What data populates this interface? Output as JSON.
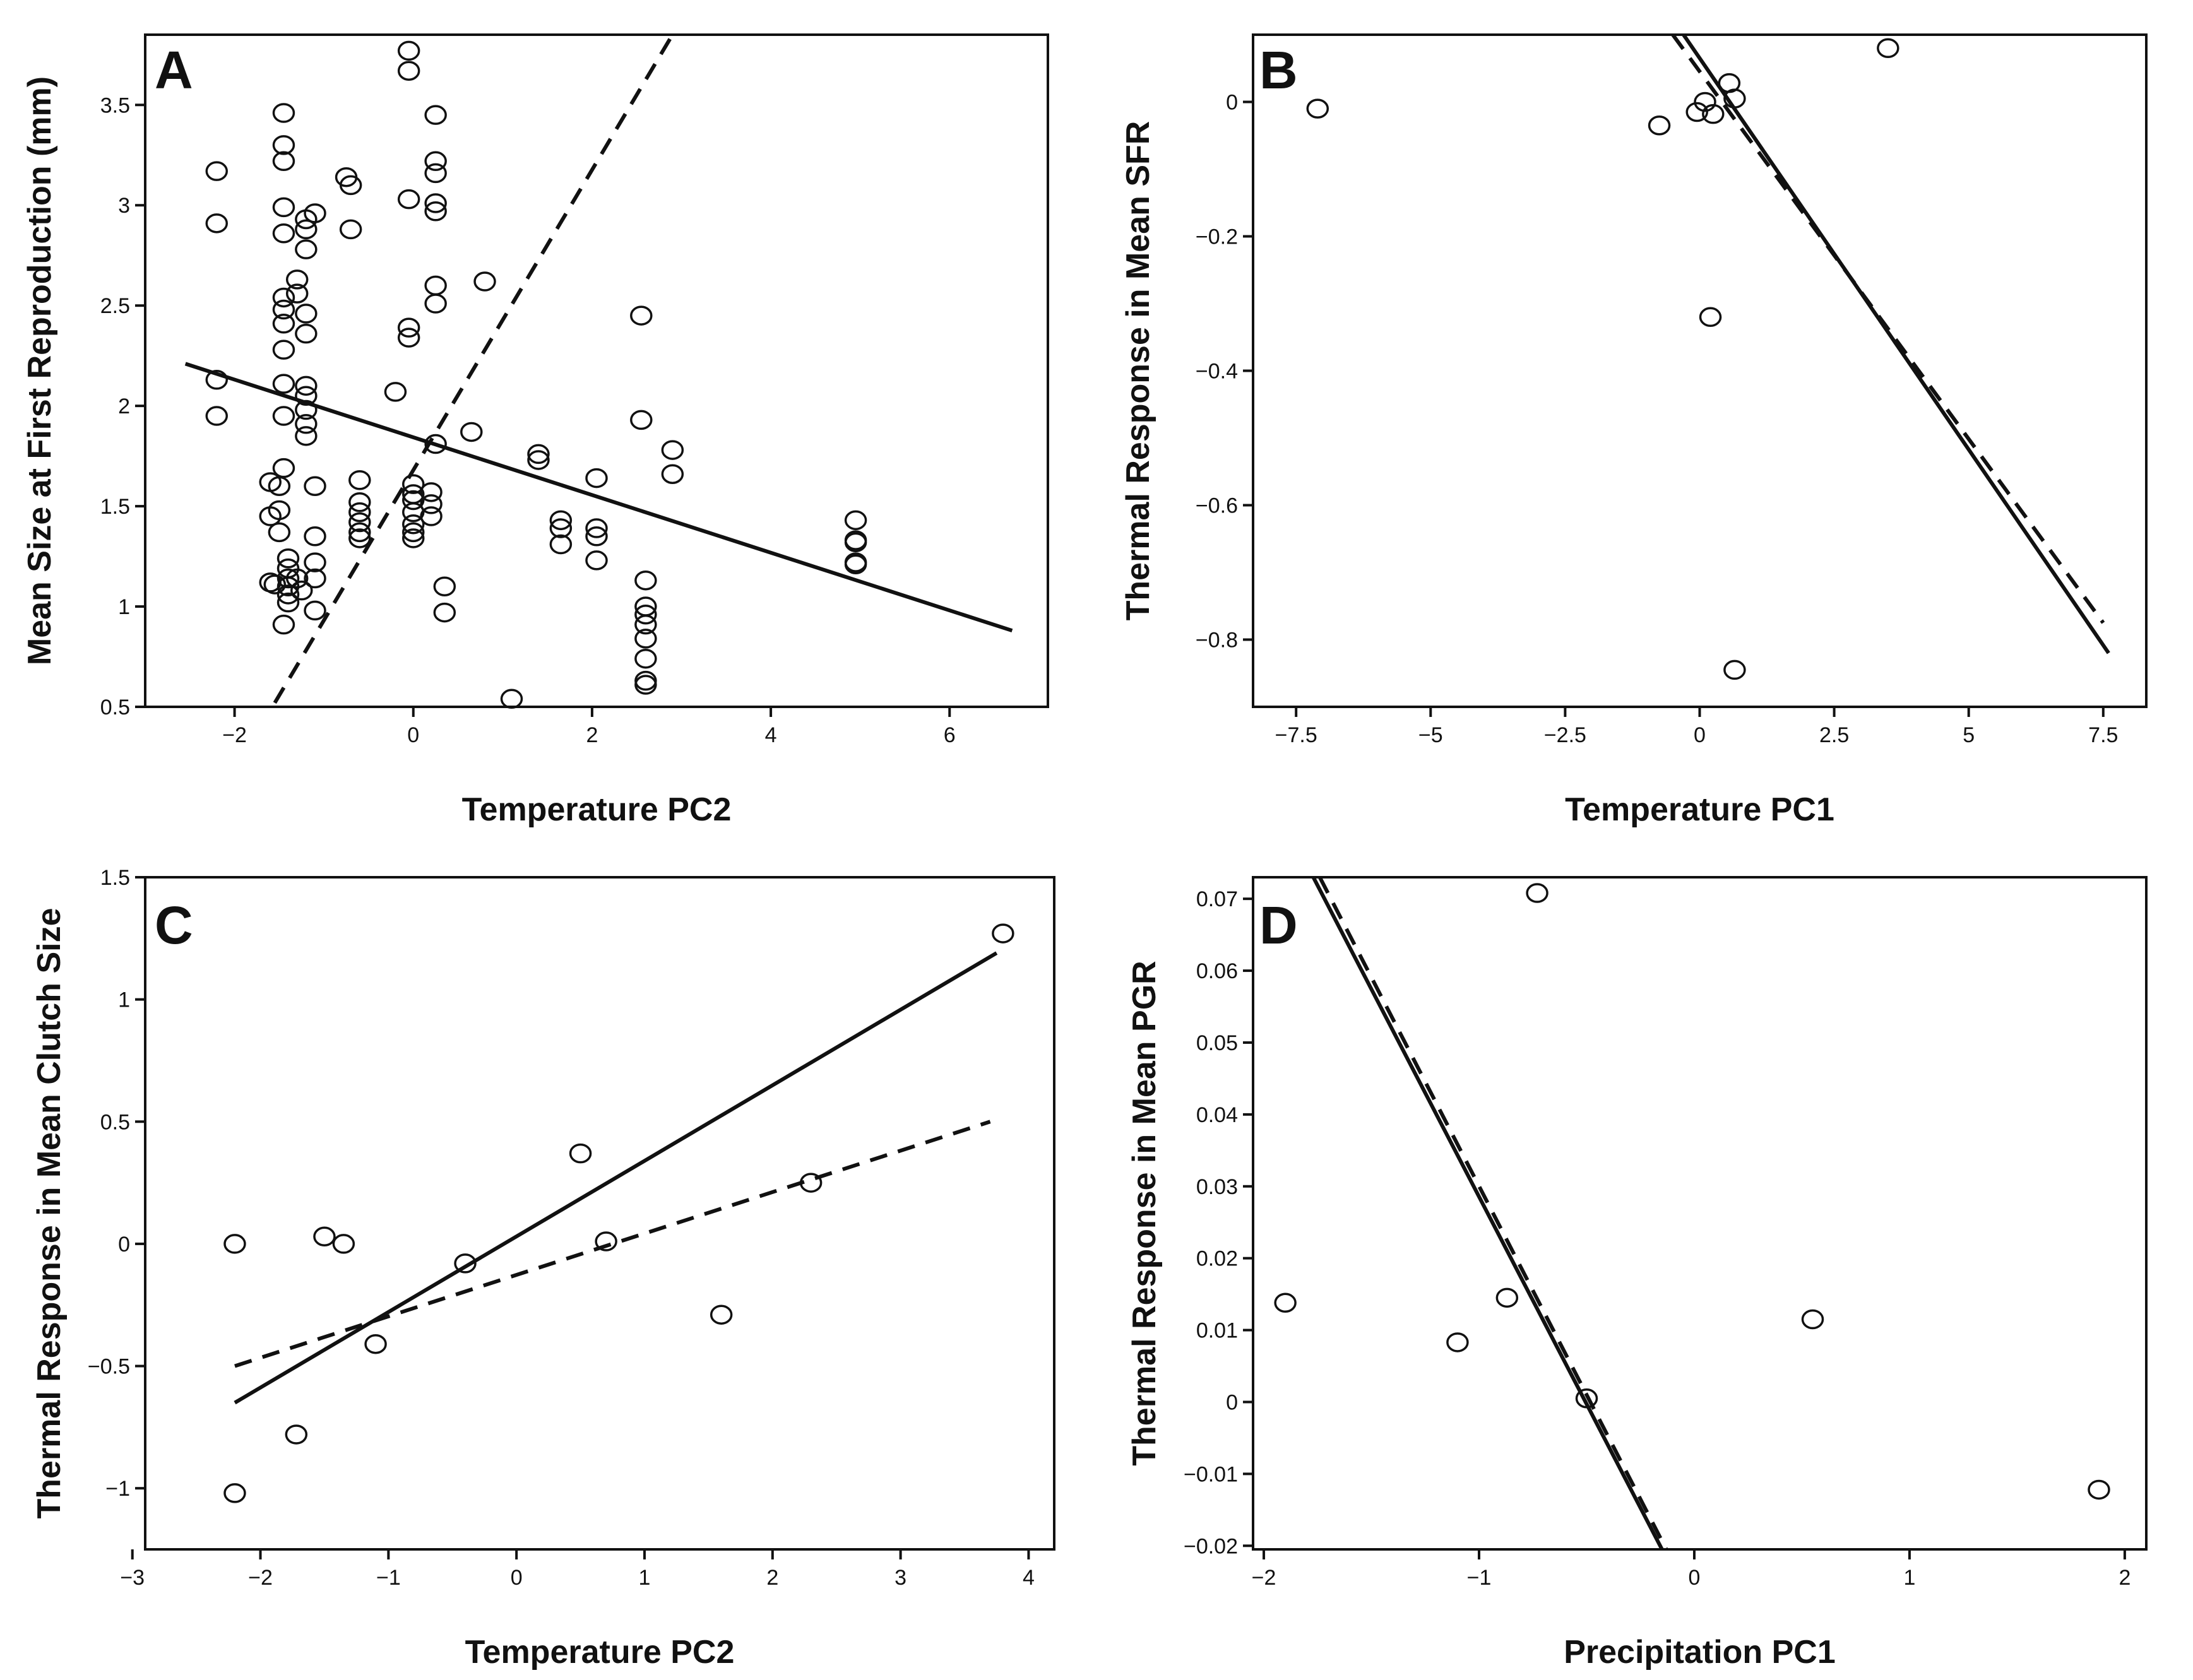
{
  "chart_data": [
    {
      "panel": "A",
      "type": "scatter",
      "xlabel": "Temperature PC2",
      "ylabel": "Mean Size at First Reproduction (mm)",
      "xlim": [
        -3,
        7.1
      ],
      "ylim": [
        0.5,
        3.85
      ],
      "xticks": [
        -2,
        0,
        2,
        4,
        6
      ],
      "xtick_labels": [
        "−2",
        "0",
        "2",
        "4",
        "6"
      ],
      "yticks": [
        0.5,
        1,
        1.5,
        2,
        2.5,
        3,
        3.5
      ],
      "ytick_labels": [
        "0.5",
        "1",
        "1.5",
        "2",
        "2.5",
        "3",
        "3.5"
      ],
      "points": [
        [
          -2.2,
          3.17
        ],
        [
          -2.2,
          2.91
        ],
        [
          -2.2,
          2.13
        ],
        [
          -2.2,
          1.95
        ],
        [
          -1.6,
          1.62
        ],
        [
          -1.6,
          1.45
        ],
        [
          -1.6,
          1.12
        ],
        [
          -1.55,
          1.11
        ],
        [
          -1.45,
          3.46
        ],
        [
          -1.45,
          3.3
        ],
        [
          -1.45,
          3.22
        ],
        [
          -1.45,
          2.99
        ],
        [
          -1.45,
          2.86
        ],
        [
          -1.45,
          2.54
        ],
        [
          -1.45,
          2.48
        ],
        [
          -1.45,
          2.41
        ],
        [
          -1.45,
          2.28
        ],
        [
          -1.45,
          2.11
        ],
        [
          -1.45,
          1.95
        ],
        [
          -1.45,
          1.69
        ],
        [
          -1.5,
          1.6
        ],
        [
          -1.5,
          1.48
        ],
        [
          -1.5,
          1.37
        ],
        [
          -1.4,
          1.24
        ],
        [
          -1.4,
          1.19
        ],
        [
          -1.4,
          1.14
        ],
        [
          -1.4,
          1.1
        ],
        [
          -1.4,
          1.06
        ],
        [
          -1.4,
          1.02
        ],
        [
          -1.45,
          0.91
        ],
        [
          -1.3,
          2.63
        ],
        [
          -1.3,
          2.56
        ],
        [
          -1.2,
          2.93
        ],
        [
          -1.2,
          2.88
        ],
        [
          -1.2,
          2.78
        ],
        [
          -1.2,
          2.46
        ],
        [
          -1.2,
          2.36
        ],
        [
          -1.2,
          2.1
        ],
        [
          -1.2,
          2.05
        ],
        [
          -1.2,
          1.98
        ],
        [
          -1.2,
          1.91
        ],
        [
          -1.2,
          1.85
        ],
        [
          -1.3,
          1.14
        ],
        [
          -1.25,
          1.08
        ],
        [
          -1.1,
          2.96
        ],
        [
          -1.1,
          1.6
        ],
        [
          -1.1,
          1.35
        ],
        [
          -1.1,
          1.22
        ],
        [
          -1.1,
          1.14
        ],
        [
          -1.1,
          0.98
        ],
        [
          -0.75,
          3.14
        ],
        [
          -0.7,
          3.1
        ],
        [
          -0.7,
          2.88
        ],
        [
          -0.6,
          1.63
        ],
        [
          -0.6,
          1.52
        ],
        [
          -0.6,
          1.47
        ],
        [
          -0.6,
          1.42
        ],
        [
          -0.6,
          1.37
        ],
        [
          -0.6,
          1.34
        ],
        [
          -0.2,
          2.07
        ],
        [
          -0.05,
          3.77
        ],
        [
          -0.05,
          3.67
        ],
        [
          -0.05,
          3.03
        ],
        [
          -0.05,
          2.39
        ],
        [
          -0.05,
          2.34
        ],
        [
          0.0,
          1.61
        ],
        [
          0.0,
          1.56
        ],
        [
          0.0,
          1.53
        ],
        [
          0.0,
          1.47
        ],
        [
          0.0,
          1.41
        ],
        [
          0.0,
          1.37
        ],
        [
          0.0,
          1.34
        ],
        [
          0.2,
          1.57
        ],
        [
          0.2,
          1.51
        ],
        [
          0.2,
          1.45
        ],
        [
          0.25,
          3.45
        ],
        [
          0.25,
          3.22
        ],
        [
          0.25,
          3.16
        ],
        [
          0.25,
          3.01
        ],
        [
          0.25,
          2.97
        ],
        [
          0.25,
          2.6
        ],
        [
          0.25,
          2.51
        ],
        [
          0.25,
          1.81
        ],
        [
          0.35,
          1.1
        ],
        [
          0.35,
          0.97
        ],
        [
          0.65,
          1.87
        ],
        [
          0.8,
          2.62
        ],
        [
          1.1,
          0.54
        ],
        [
          1.4,
          1.76
        ],
        [
          1.4,
          1.73
        ],
        [
          1.65,
          1.43
        ],
        [
          1.65,
          1.39
        ],
        [
          1.65,
          1.31
        ],
        [
          2.05,
          1.64
        ],
        [
          2.05,
          1.39
        ],
        [
          2.05,
          1.35
        ],
        [
          2.05,
          1.23
        ],
        [
          2.55,
          2.45
        ],
        [
          2.55,
          1.93
        ],
        [
          2.6,
          1.13
        ],
        [
          2.6,
          1.0
        ],
        [
          2.6,
          0.96
        ],
        [
          2.6,
          0.91
        ],
        [
          2.6,
          0.84
        ],
        [
          2.6,
          0.74
        ],
        [
          2.6,
          0.63
        ],
        [
          2.6,
          0.61
        ],
        [
          2.9,
          1.78
        ],
        [
          2.9,
          1.66
        ],
        [
          4.95,
          1.43
        ],
        [
          4.95,
          1.33
        ],
        [
          4.95,
          1.32
        ],
        [
          4.95,
          1.22
        ],
        [
          4.95,
          1.21
        ]
      ],
      "solid_line": [
        [
          -2.55,
          2.21
        ],
        [
          6.7,
          0.88
        ]
      ],
      "dashed_line": [
        [
          -1.55,
          0.52
        ],
        [
          2.9,
          3.85
        ]
      ]
    },
    {
      "panel": "B",
      "type": "scatter",
      "xlabel": "Temperature PC1",
      "ylabel": "Thermal Response in Mean SFR",
      "xlim": [
        -8.3,
        8.3
      ],
      "ylim": [
        -0.9,
        0.1
      ],
      "xticks": [
        -7.5,
        -5,
        -2.5,
        0,
        2.5,
        5,
        7.5
      ],
      "xtick_labels": [
        "−7.5",
        "−5",
        "−2.5",
        "0",
        "2.5",
        "5",
        "7.5"
      ],
      "yticks": [
        -0.8,
        -0.6,
        -0.4,
        -0.2,
        0
      ],
      "ytick_labels": [
        "−0.8",
        "−0.6",
        "−0.4",
        "−0.2",
        "0"
      ],
      "points": [
        [
          -7.1,
          -0.01
        ],
        [
          -0.75,
          -0.035
        ],
        [
          -0.05,
          -0.015
        ],
        [
          0.1,
          0.0
        ],
        [
          0.25,
          -0.018
        ],
        [
          0.55,
          0.028
        ],
        [
          0.65,
          0.005
        ],
        [
          0.2,
          -0.32
        ],
        [
          0.65,
          -0.845
        ],
        [
          3.5,
          0.08
        ]
      ],
      "solid_line": [
        [
          -0.3,
          0.1
        ],
        [
          7.6,
          -0.82
        ]
      ],
      "dashed_line": [
        [
          -0.5,
          0.1
        ],
        [
          7.5,
          -0.775
        ]
      ]
    },
    {
      "panel": "C",
      "type": "scatter",
      "xlabel": "Temperature PC2",
      "ylabel": "Thermal Response in Mean Clutch Size",
      "xlim": [
        -2.9,
        4.2
      ],
      "ylim": [
        -1.25,
        1.5
      ],
      "xticks": [
        -3,
        -2,
        -1,
        0,
        1,
        2,
        3,
        4
      ],
      "xtick_labels": [
        "−3",
        "−2",
        "−1",
        "0",
        "1",
        "2",
        "3",
        "4"
      ],
      "yticks": [
        -1,
        -0.5,
        0,
        0.5,
        1,
        1.5
      ],
      "ytick_labels": [
        "−1",
        "−0.5",
        "0",
        "0.5",
        "1",
        "1.5"
      ],
      "points": [
        [
          -2.2,
          0.0
        ],
        [
          -2.2,
          -1.02
        ],
        [
          -1.5,
          0.03
        ],
        [
          -1.35,
          0.0
        ],
        [
          -1.1,
          -0.41
        ],
        [
          -1.72,
          -0.78
        ],
        [
          -0.4,
          -0.08
        ],
        [
          0.5,
          0.37
        ],
        [
          0.7,
          0.01
        ],
        [
          1.6,
          -0.29
        ],
        [
          2.3,
          0.25
        ],
        [
          3.8,
          1.27
        ]
      ],
      "solid_line": [
        [
          -2.2,
          -0.65
        ],
        [
          3.75,
          1.19
        ]
      ],
      "dashed_line": [
        [
          -2.2,
          -0.5
        ],
        [
          3.7,
          0.5
        ]
      ]
    },
    {
      "panel": "D",
      "type": "scatter",
      "xlabel": "Precipitation PC1",
      "ylabel": "Thermal Response in Mean PGR",
      "xlim": [
        -2.05,
        2.1
      ],
      "ylim": [
        -0.0205,
        0.073
      ],
      "xticks": [
        -2,
        -1,
        0,
        1,
        2
      ],
      "xtick_labels": [
        "−2",
        "−1",
        "0",
        "1",
        "2"
      ],
      "yticks": [
        -0.02,
        -0.01,
        0,
        0.01,
        0.02,
        0.03,
        0.04,
        0.05,
        0.06,
        0.07
      ],
      "ytick_labels": [
        "−0.02",
        "−0.01",
        "0",
        "0.01",
        "0.02",
        "0.03",
        "0.04",
        "0.05",
        "0.06",
        "0.07"
      ],
      "points": [
        [
          -1.9,
          0.0138
        ],
        [
          -1.1,
          0.0083
        ],
        [
          -0.87,
          0.0145
        ],
        [
          -0.73,
          0.0708
        ],
        [
          -0.5,
          0.0005
        ],
        [
          0.55,
          0.0115
        ],
        [
          1.88,
          -0.0122
        ]
      ],
      "solid_line": [
        [
          -1.77,
          0.073
        ],
        [
          -0.15,
          -0.0205
        ]
      ],
      "dashed_line": [
        [
          -1.74,
          0.073
        ],
        [
          -0.13,
          -0.0205
        ]
      ]
    }
  ]
}
